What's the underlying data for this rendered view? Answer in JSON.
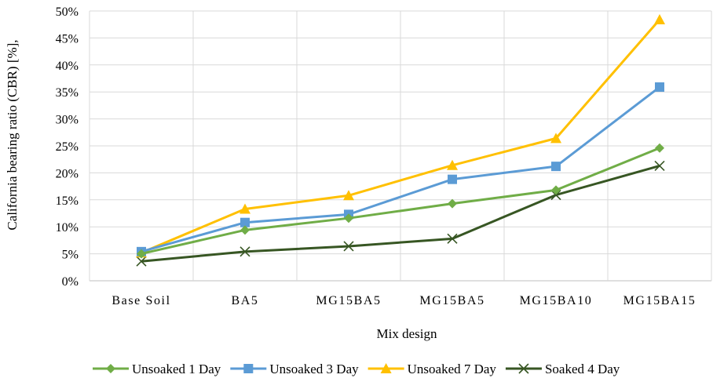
{
  "chart_data": {
    "type": "line",
    "title": "",
    "xlabel": "Mix design",
    "ylabel": "California  bearing ratio (CBR)  [%],",
    "ylim": [
      0,
      50
    ],
    "y_tick_step": 5,
    "y_tick_format": "percent",
    "grid": "vertical-and-horizontal",
    "legend_position": "bottom",
    "categories": [
      "Base Soil",
      "BA5",
      "MG15BA5",
      "MG15BA5",
      "MG15BA10",
      "MG15BA15"
    ],
    "category_labels": [
      "Base Soil",
      "BA5",
      "MG15BA5",
      "MG15BA5",
      "MG15BA10",
      "MG15BA15"
    ],
    "series": [
      {
        "name": "Unsoaked 1 Day",
        "color": "#70AD47",
        "marker": "diamond",
        "values": [
          5.0,
          9.4,
          11.6,
          14.3,
          16.8,
          24.6
        ]
      },
      {
        "name": "Unsoaked 3 Day",
        "color": "#5B9BD5",
        "marker": "square",
        "values": [
          5.4,
          10.8,
          12.3,
          18.8,
          21.2,
          35.9
        ]
      },
      {
        "name": "Unsoaked 7 Day",
        "color": "#FFC000",
        "marker": "triangle",
        "values": [
          5.2,
          13.3,
          15.8,
          21.4,
          26.4,
          48.4
        ]
      },
      {
        "name": "Soaked 4 Day",
        "color": "#375623",
        "marker": "x",
        "values": [
          3.6,
          5.4,
          6.4,
          7.8,
          15.9,
          21.3
        ]
      }
    ]
  }
}
